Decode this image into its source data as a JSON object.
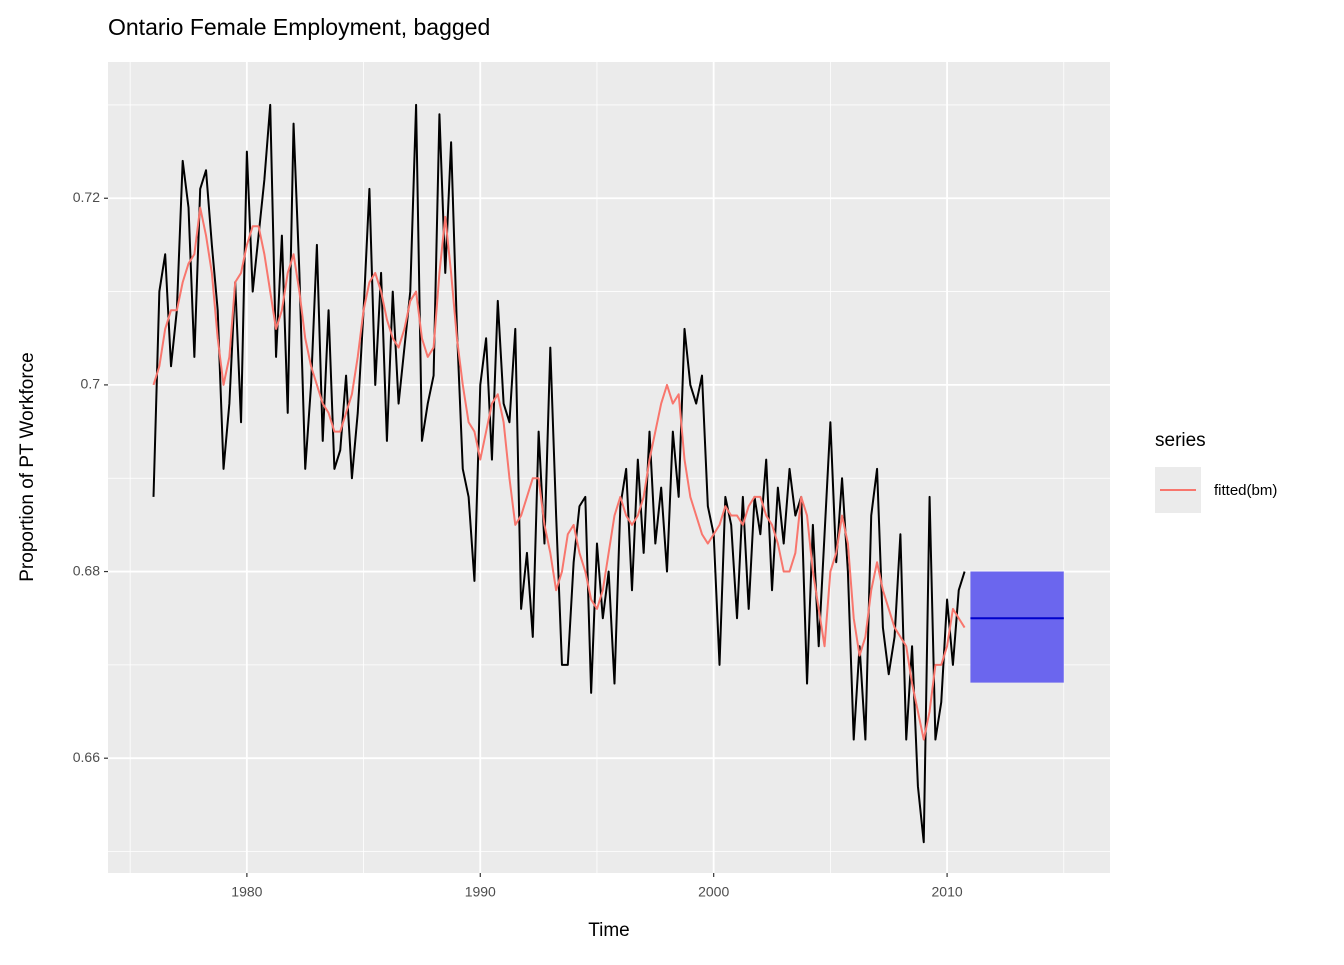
{
  "chart_data": {
    "type": "line",
    "title": "Ontario Female Employment, bagged",
    "x_label": "Time",
    "y_label": "Proportion of PT Workforce",
    "xlim": [
      1974.05,
      2016.98
    ],
    "xticks": [
      1980,
      1990,
      2000,
      2010
    ],
    "ylim": [
      0.6477,
      0.7346
    ],
    "yticks": [
      0.66,
      0.68,
      0.7,
      0.72
    ],
    "grid": true,
    "minor_grid": true,
    "legend_position": "right",
    "legend_title": "series",
    "x": [
      1976,
      1976.25,
      1976.5,
      1976.75,
      1977,
      1977.25,
      1977.5,
      1977.75,
      1978,
      1978.25,
      1978.5,
      1978.75,
      1979,
      1979.25,
      1979.5,
      1979.75,
      1980,
      1980.25,
      1980.5,
      1980.75,
      1981,
      1981.25,
      1981.5,
      1981.75,
      1982,
      1982.25,
      1982.5,
      1982.75,
      1983,
      1983.25,
      1983.5,
      1983.75,
      1984,
      1984.25,
      1984.5,
      1984.75,
      1985,
      1985.25,
      1985.5,
      1985.75,
      1986,
      1986.25,
      1986.5,
      1986.75,
      1987,
      1987.25,
      1987.5,
      1987.75,
      1988,
      1988.25,
      1988.5,
      1988.75,
      1989,
      1989.25,
      1989.5,
      1989.75,
      1990,
      1990.25,
      1990.5,
      1990.75,
      1991,
      1991.25,
      1991.5,
      1991.75,
      1992,
      1992.25,
      1992.5,
      1992.75,
      1993,
      1993.25,
      1993.5,
      1993.75,
      1994,
      1994.25,
      1994.5,
      1994.75,
      1995,
      1995.25,
      1995.5,
      1995.75,
      1996,
      1996.25,
      1996.5,
      1996.75,
      1997,
      1997.25,
      1997.5,
      1997.75,
      1998,
      1998.25,
      1998.5,
      1998.75,
      1999,
      1999.25,
      1999.5,
      1999.75,
      2000,
      2000.25,
      2000.5,
      2000.75,
      2001,
      2001.25,
      2001.5,
      2001.75,
      2002,
      2002.25,
      2002.5,
      2002.75,
      2003,
      2003.25,
      2003.5,
      2003.75,
      2004,
      2004.25,
      2004.5,
      2004.75,
      2005,
      2005.25,
      2005.5,
      2005.75,
      2006,
      2006.25,
      2006.5,
      2006.75,
      2007,
      2007.25,
      2007.5,
      2007.75,
      2008,
      2008.25,
      2008.5,
      2008.75,
      2009,
      2009.25,
      2009.5,
      2009.75,
      2010,
      2010.25,
      2010.5,
      2010.75
    ],
    "observed": {
      "color": "#000000",
      "values": [
        0.688,
        0.71,
        0.714,
        0.702,
        0.708,
        0.724,
        0.719,
        0.703,
        0.721,
        0.723,
        0.715,
        0.708,
        0.691,
        0.698,
        0.711,
        0.696,
        0.725,
        0.71,
        0.716,
        0.722,
        0.73,
        0.703,
        0.716,
        0.697,
        0.728,
        0.712,
        0.691,
        0.7,
        0.715,
        0.694,
        0.708,
        0.691,
        0.693,
        0.701,
        0.69,
        0.697,
        0.708,
        0.721,
        0.7,
        0.712,
        0.694,
        0.71,
        0.698,
        0.704,
        0.71,
        0.73,
        0.694,
        0.698,
        0.701,
        0.729,
        0.712,
        0.726,
        0.706,
        0.691,
        0.688,
        0.679,
        0.7,
        0.705,
        0.692,
        0.709,
        0.698,
        0.696,
        0.706,
        0.676,
        0.682,
        0.673,
        0.695,
        0.683,
        0.704,
        0.686,
        0.67,
        0.67,
        0.681,
        0.687,
        0.688,
        0.667,
        0.683,
        0.675,
        0.68,
        0.668,
        0.687,
        0.691,
        0.678,
        0.692,
        0.682,
        0.695,
        0.683,
        0.689,
        0.68,
        0.695,
        0.688,
        0.706,
        0.7,
        0.698,
        0.701,
        0.687,
        0.684,
        0.67,
        0.688,
        0.685,
        0.675,
        0.688,
        0.676,
        0.688,
        0.684,
        0.692,
        0.678,
        0.689,
        0.683,
        0.691,
        0.686,
        0.688,
        0.668,
        0.685,
        0.672,
        0.684,
        0.696,
        0.681,
        0.69,
        0.68,
        0.662,
        0.672,
        0.662,
        0.686,
        0.691,
        0.674,
        0.669,
        0.673,
        0.684,
        0.662,
        0.672,
        0.657,
        0.651,
        0.688,
        0.662,
        0.666,
        0.677,
        0.67,
        0.678,
        0.68
      ]
    },
    "series": [
      {
        "name": "fitted(bm)",
        "color": "#f8766d",
        "values": [
          0.7,
          0.702,
          0.706,
          0.708,
          0.708,
          0.711,
          0.713,
          0.714,
          0.719,
          0.716,
          0.712,
          0.705,
          0.7,
          0.703,
          0.711,
          0.712,
          0.715,
          0.717,
          0.717,
          0.714,
          0.71,
          0.706,
          0.708,
          0.712,
          0.714,
          0.71,
          0.705,
          0.702,
          0.7,
          0.698,
          0.697,
          0.695,
          0.695,
          0.697,
          0.699,
          0.703,
          0.708,
          0.711,
          0.712,
          0.71,
          0.707,
          0.705,
          0.704,
          0.706,
          0.709,
          0.71,
          0.705,
          0.703,
          0.704,
          0.712,
          0.718,
          0.712,
          0.705,
          0.7,
          0.696,
          0.695,
          0.692,
          0.695,
          0.698,
          0.699,
          0.696,
          0.69,
          0.685,
          0.686,
          0.688,
          0.69,
          0.69,
          0.685,
          0.682,
          0.678,
          0.68,
          0.684,
          0.685,
          0.682,
          0.68,
          0.677,
          0.676,
          0.678,
          0.682,
          0.686,
          0.688,
          0.686,
          0.685,
          0.686,
          0.688,
          0.692,
          0.695,
          0.698,
          0.7,
          0.698,
          0.699,
          0.692,
          0.688,
          0.686,
          0.684,
          0.683,
          0.684,
          0.685,
          0.687,
          0.686,
          0.686,
          0.685,
          0.687,
          0.688,
          0.688,
          0.686,
          0.685,
          0.683,
          0.68,
          0.68,
          0.682,
          0.688,
          0.686,
          0.68,
          0.676,
          0.672,
          0.68,
          0.682,
          0.686,
          0.683,
          0.675,
          0.671,
          0.673,
          0.678,
          0.681,
          0.678,
          0.676,
          0.674,
          0.673,
          0.672,
          0.668,
          0.665,
          0.662,
          0.665,
          0.67,
          0.67,
          0.672,
          0.676,
          0.675,
          0.674
        ]
      }
    ],
    "forecast": {
      "line_color": "#0000cc",
      "band_color": "#6b66ee",
      "x": [
        2011,
        2015
      ],
      "values": [
        0.675,
        0.675
      ],
      "lower": [
        0.6681,
        0.6681
      ],
      "upper": [
        0.68,
        0.68
      ]
    }
  }
}
